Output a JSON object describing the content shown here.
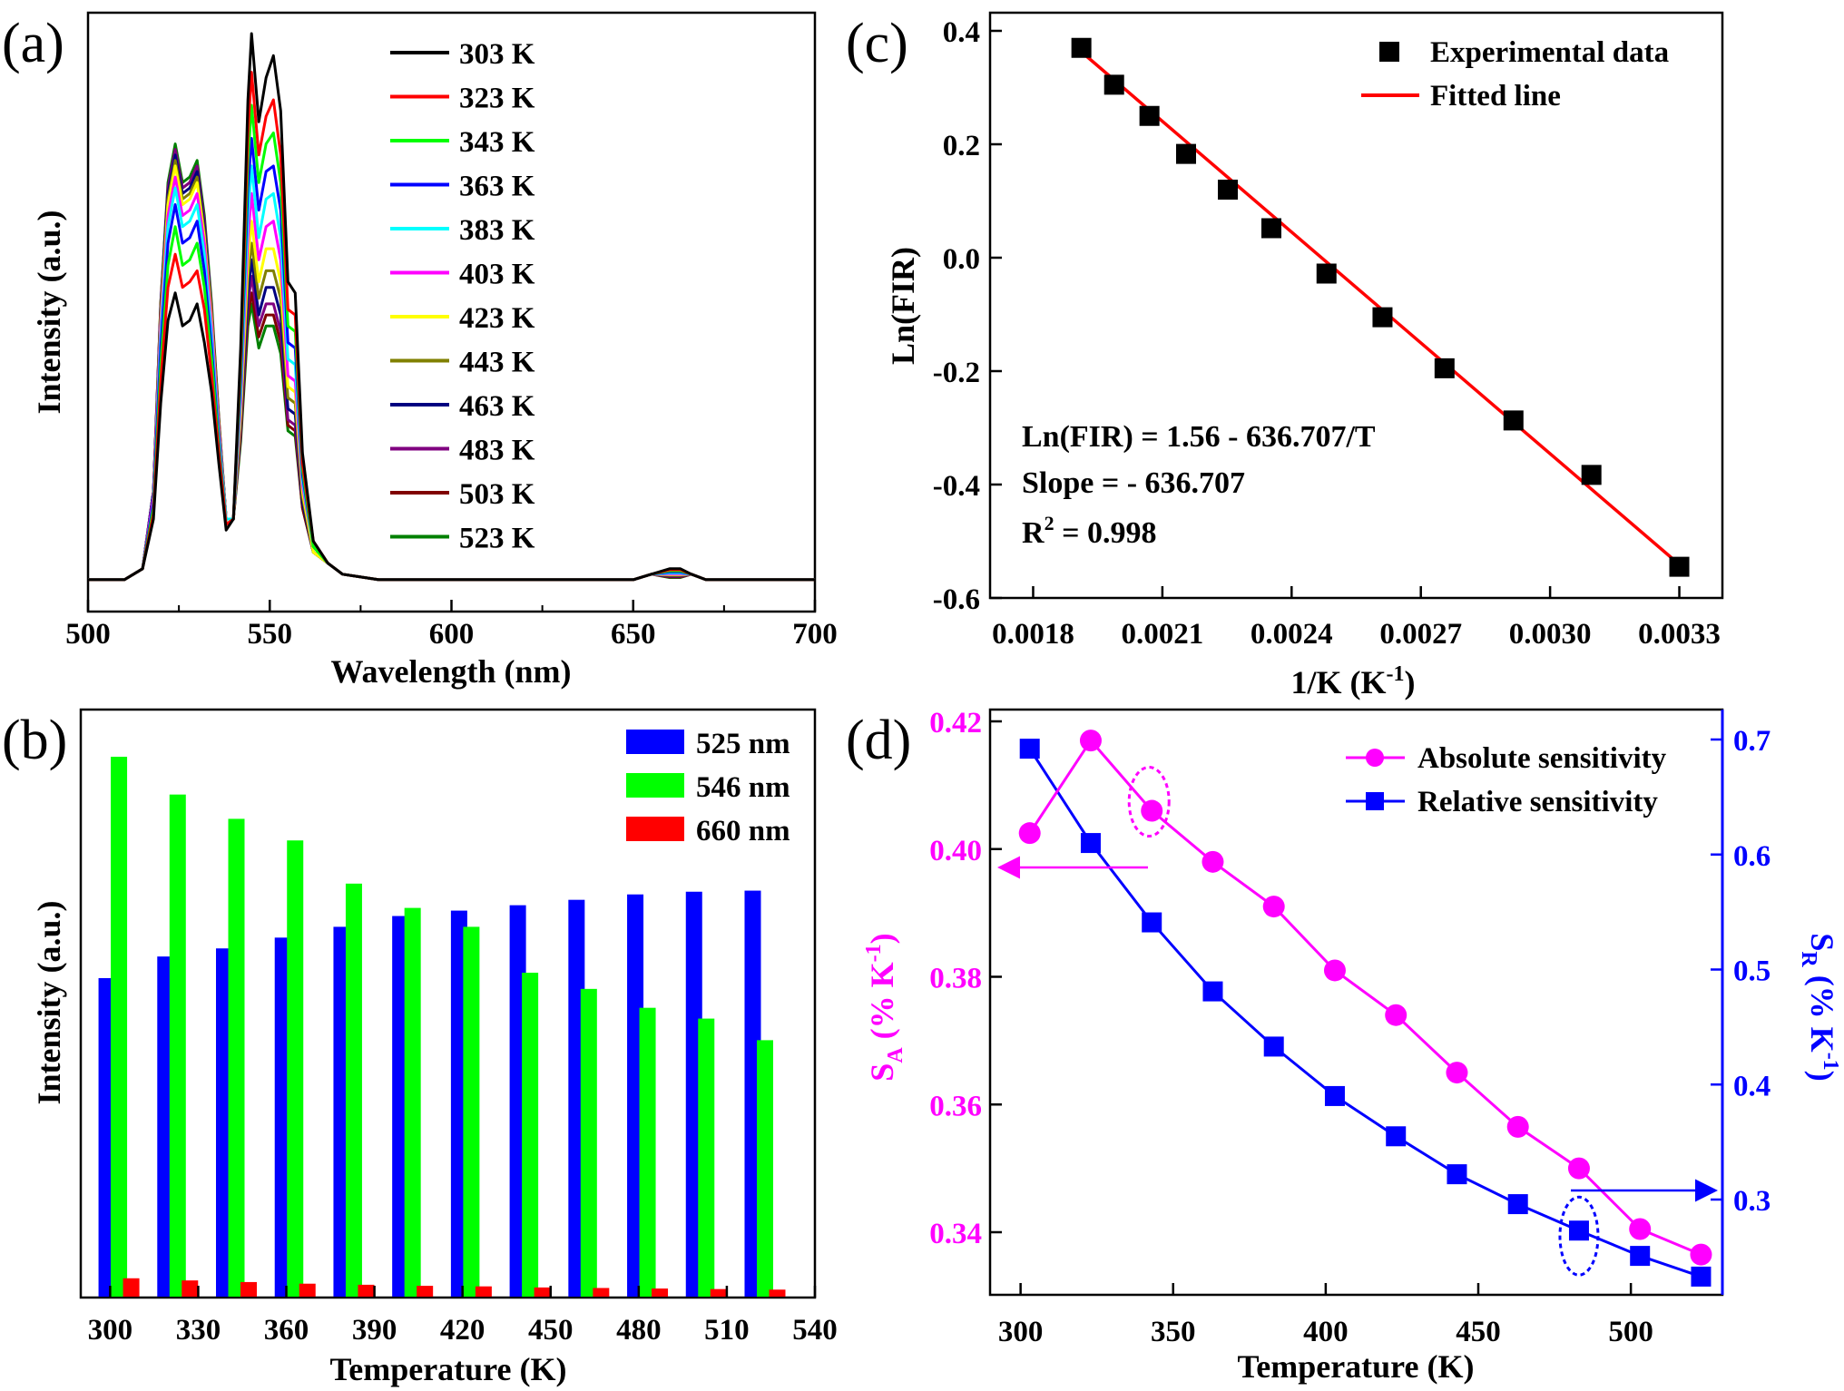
{
  "chart_data": [
    {
      "panel_label": "(a)",
      "type": "line",
      "xlabel": "Wavelength (nm)",
      "ylabel": "Intensity (a.u.)",
      "xlim": [
        500,
        700
      ],
      "xticks": [
        "500",
        "550",
        "600",
        "650",
        "700"
      ],
      "legend_position": "top-center",
      "x": [
        500,
        510,
        515,
        518,
        520,
        522,
        524,
        526,
        528,
        530,
        532,
        534,
        536,
        538,
        540,
        542,
        544,
        545,
        547,
        549,
        551,
        553,
        555,
        557,
        559,
        562,
        566,
        570,
        580,
        600,
        640,
        650,
        655,
        660,
        663,
        666,
        670,
        680,
        700
      ],
      "series": [
        {
          "name": "303 K",
          "color": "#000000",
          "values": [
            0.01,
            0.01,
            0.03,
            0.12,
            0.33,
            0.48,
            0.53,
            0.47,
            0.48,
            0.51,
            0.44,
            0.35,
            0.22,
            0.1,
            0.12,
            0.43,
            0.88,
            1.0,
            0.84,
            0.92,
            0.96,
            0.86,
            0.55,
            0.53,
            0.24,
            0.08,
            0.04,
            0.02,
            0.01,
            0.01,
            0.01,
            0.01,
            0.02,
            0.03,
            0.03,
            0.02,
            0.01,
            0.01,
            0.01
          ]
        },
        {
          "name": "323 K",
          "color": "#ff0000",
          "values": [
            0.01,
            0.01,
            0.03,
            0.13,
            0.37,
            0.54,
            0.6,
            0.54,
            0.55,
            0.57,
            0.5,
            0.38,
            0.24,
            0.11,
            0.12,
            0.41,
            0.82,
            0.93,
            0.78,
            0.85,
            0.88,
            0.78,
            0.5,
            0.49,
            0.22,
            0.08,
            0.04,
            0.02,
            0.01,
            0.01,
            0.01,
            0.01,
            0.02,
            0.028,
            0.028,
            0.02,
            0.01,
            0.01,
            0.01
          ]
        },
        {
          "name": "343 K",
          "color": "#00ff00",
          "values": [
            0.01,
            0.01,
            0.03,
            0.14,
            0.4,
            0.58,
            0.65,
            0.58,
            0.59,
            0.62,
            0.54,
            0.41,
            0.25,
            0.11,
            0.12,
            0.39,
            0.77,
            0.87,
            0.73,
            0.8,
            0.82,
            0.73,
            0.47,
            0.46,
            0.21,
            0.07,
            0.04,
            0.02,
            0.01,
            0.01,
            0.01,
            0.01,
            0.02,
            0.026,
            0.026,
            0.02,
            0.01,
            0.01,
            0.01
          ]
        },
        {
          "name": "363 K",
          "color": "#0000ff",
          "values": [
            0.01,
            0.01,
            0.03,
            0.15,
            0.43,
            0.62,
            0.69,
            0.62,
            0.63,
            0.66,
            0.57,
            0.43,
            0.26,
            0.11,
            0.12,
            0.37,
            0.72,
            0.81,
            0.68,
            0.75,
            0.76,
            0.68,
            0.44,
            0.43,
            0.2,
            0.07,
            0.04,
            0.02,
            0.01,
            0.01,
            0.01,
            0.01,
            0.02,
            0.024,
            0.024,
            0.02,
            0.01,
            0.01,
            0.01
          ]
        },
        {
          "name": "383 K",
          "color": "#00ffff",
          "values": [
            0.01,
            0.01,
            0.03,
            0.15,
            0.45,
            0.65,
            0.72,
            0.65,
            0.66,
            0.69,
            0.6,
            0.45,
            0.27,
            0.12,
            0.12,
            0.35,
            0.67,
            0.76,
            0.63,
            0.7,
            0.71,
            0.63,
            0.41,
            0.4,
            0.19,
            0.07,
            0.04,
            0.02,
            0.01,
            0.01,
            0.01,
            0.01,
            0.02,
            0.022,
            0.022,
            0.02,
            0.01,
            0.01,
            0.01
          ]
        },
        {
          "name": "403 K",
          "color": "#ff00ff",
          "values": [
            0.01,
            0.01,
            0.03,
            0.16,
            0.47,
            0.67,
            0.74,
            0.67,
            0.68,
            0.71,
            0.62,
            0.47,
            0.28,
            0.12,
            0.12,
            0.33,
            0.63,
            0.71,
            0.59,
            0.65,
            0.66,
            0.59,
            0.38,
            0.37,
            0.18,
            0.07,
            0.04,
            0.02,
            0.01,
            0.01,
            0.01,
            0.01,
            0.02,
            0.02,
            0.02,
            0.02,
            0.01,
            0.01,
            0.01
          ]
        },
        {
          "name": "423 K",
          "color": "#ffff00",
          "values": [
            0.01,
            0.01,
            0.03,
            0.16,
            0.48,
            0.69,
            0.76,
            0.69,
            0.7,
            0.73,
            0.63,
            0.48,
            0.28,
            0.12,
            0.12,
            0.31,
            0.59,
            0.66,
            0.55,
            0.61,
            0.61,
            0.55,
            0.36,
            0.35,
            0.17,
            0.06,
            0.04,
            0.02,
            0.01,
            0.01,
            0.01,
            0.01,
            0.02,
            0.019,
            0.019,
            0.02,
            0.01,
            0.01,
            0.01
          ]
        },
        {
          "name": "443 K",
          "color": "#808000",
          "values": [
            0.01,
            0.01,
            0.03,
            0.16,
            0.49,
            0.7,
            0.77,
            0.7,
            0.71,
            0.74,
            0.64,
            0.49,
            0.29,
            0.12,
            0.12,
            0.3,
            0.56,
            0.62,
            0.52,
            0.57,
            0.57,
            0.52,
            0.34,
            0.33,
            0.16,
            0.06,
            0.04,
            0.02,
            0.01,
            0.01,
            0.01,
            0.01,
            0.02,
            0.018,
            0.018,
            0.02,
            0.01,
            0.01,
            0.01
          ]
        },
        {
          "name": "463 K",
          "color": "#000080",
          "values": [
            0.01,
            0.01,
            0.03,
            0.17,
            0.5,
            0.71,
            0.78,
            0.71,
            0.72,
            0.75,
            0.65,
            0.49,
            0.29,
            0.12,
            0.12,
            0.29,
            0.53,
            0.59,
            0.49,
            0.54,
            0.54,
            0.49,
            0.32,
            0.31,
            0.15,
            0.06,
            0.04,
            0.02,
            0.01,
            0.01,
            0.01,
            0.01,
            0.02,
            0.017,
            0.017,
            0.02,
            0.01,
            0.01,
            0.01
          ]
        },
        {
          "name": "483 K",
          "color": "#800080",
          "values": [
            0.01,
            0.01,
            0.03,
            0.17,
            0.5,
            0.72,
            0.79,
            0.72,
            0.73,
            0.76,
            0.66,
            0.5,
            0.29,
            0.12,
            0.12,
            0.28,
            0.51,
            0.56,
            0.47,
            0.51,
            0.51,
            0.46,
            0.3,
            0.29,
            0.15,
            0.06,
            0.04,
            0.02,
            0.01,
            0.01,
            0.01,
            0.01,
            0.02,
            0.016,
            0.016,
            0.02,
            0.01,
            0.01,
            0.01
          ]
        },
        {
          "name": "503 K",
          "color": "#800000",
          "values": [
            0.01,
            0.01,
            0.03,
            0.17,
            0.51,
            0.72,
            0.79,
            0.72,
            0.73,
            0.76,
            0.66,
            0.5,
            0.3,
            0.12,
            0.12,
            0.27,
            0.49,
            0.53,
            0.45,
            0.49,
            0.49,
            0.44,
            0.29,
            0.28,
            0.14,
            0.06,
            0.04,
            0.02,
            0.01,
            0.01,
            0.01,
            0.01,
            0.02,
            0.015,
            0.015,
            0.02,
            0.01,
            0.01,
            0.01
          ]
        },
        {
          "name": "523 K",
          "color": "#008000",
          "values": [
            0.01,
            0.01,
            0.03,
            0.17,
            0.51,
            0.73,
            0.8,
            0.73,
            0.74,
            0.77,
            0.67,
            0.51,
            0.3,
            0.12,
            0.12,
            0.26,
            0.47,
            0.51,
            0.43,
            0.47,
            0.47,
            0.42,
            0.28,
            0.27,
            0.14,
            0.06,
            0.04,
            0.02,
            0.01,
            0.01,
            0.01,
            0.01,
            0.02,
            0.014,
            0.014,
            0.02,
            0.01,
            0.01,
            0.01
          ]
        }
      ]
    },
    {
      "panel_label": "(b)",
      "type": "bar",
      "xlabel": "Temperature (K)",
      "ylabel": "Intensity (a.u.)",
      "xlim": [
        290,
        540
      ],
      "xticks": [
        "300",
        "330",
        "360",
        "390",
        "420",
        "450",
        "480",
        "510",
        "540"
      ],
      "legend_position": "top-right",
      "categories": [
        303,
        323,
        343,
        363,
        383,
        403,
        423,
        443,
        463,
        483,
        503,
        523
      ],
      "series": [
        {
          "name": "525 nm",
          "color": "#0000ff",
          "values": [
            0.59,
            0.63,
            0.645,
            0.665,
            0.685,
            0.705,
            0.715,
            0.725,
            0.735,
            0.745,
            0.75,
            0.752
          ]
        },
        {
          "name": "546 nm",
          "color": "#00ff00",
          "values": [
            1.0,
            0.93,
            0.885,
            0.845,
            0.765,
            0.72,
            0.685,
            0.6,
            0.57,
            0.535,
            0.515,
            0.475
          ]
        },
        {
          "name": "660 nm",
          "color": "#ff0000",
          "values": [
            0.034,
            0.03,
            0.027,
            0.024,
            0.022,
            0.02,
            0.019,
            0.017,
            0.016,
            0.015,
            0.014,
            0.013
          ]
        }
      ]
    },
    {
      "panel_label": "(c)",
      "type": "scatter",
      "xlabel": "1/K (K⁻¹)",
      "ylabel": "Ln(FIR)",
      "xlim": [
        0.0017,
        0.0034
      ],
      "ylim": [
        -0.6,
        0.4
      ],
      "xticks": [
        "0.0018",
        "0.0021",
        "0.0024",
        "0.0027",
        "0.0030",
        "0.0033"
      ],
      "yticks": [
        "-0.6",
        "-0.4",
        "-0.2",
        "0.0",
        "0.2",
        "0.4"
      ],
      "legend_position": "top-right",
      "series": [
        {
          "name": "Experimental data",
          "color": "#000000",
          "x": [
            0.001912,
            0.001988,
            0.00207,
            0.002155,
            0.002252,
            0.002353,
            0.002481,
            0.002611,
            0.002755,
            0.002915,
            0.003096,
            0.0033
          ],
          "y": [
            0.37,
            0.305,
            0.25,
            0.183,
            0.12,
            0.052,
            -0.028,
            -0.105,
            -0.195,
            -0.287,
            -0.383,
            -0.545
          ]
        },
        {
          "name": "Fitted line",
          "color": "#ff0000",
          "x": [
            0.001912,
            0.0033
          ],
          "y": [
            0.363,
            -0.541
          ]
        }
      ],
      "annotations": [
        "Ln(FIR) = 1.56 - 636.707/T",
        "Slope = - 636.707",
        "0.998"
      ],
      "r_squared_label": "R"
    },
    {
      "panel_label": "(d)",
      "type": "line",
      "xlabel": "Temperature (K)",
      "ylabel_left": "(% K",
      "ylabel_left_symbol": "S",
      "ylabel_left_sub": "A",
      "ylabel_right": "(% K",
      "ylabel_right_symbol": "S",
      "ylabel_right_sub": "R",
      "xlim": [
        290,
        530
      ],
      "ylim_left": [
        0.33,
        0.42
      ],
      "ylim_right": [
        0.22,
        0.72
      ],
      "xticks": [
        "300",
        "350",
        "400",
        "450",
        "500"
      ],
      "yticks_left": [
        "0.34",
        "0.36",
        "0.38",
        "0.40",
        "0.42"
      ],
      "yticks_right": [
        "0.3",
        "0.4",
        "0.5",
        "0.6",
        "0.7"
      ],
      "legend_position": "top-right",
      "colors": {
        "absolute": "#ff00ff",
        "relative": "#0000ff"
      },
      "x": [
        303,
        323,
        343,
        363,
        383,
        403,
        423,
        443,
        463,
        483,
        503,
        523
      ],
      "series": [
        {
          "name": "Absolute sensitivity",
          "axis": "left",
          "color": "#ff00ff",
          "values": [
            0.4025,
            0.417,
            0.406,
            0.398,
            0.391,
            0.381,
            0.374,
            0.365,
            0.3565,
            0.35,
            0.3405,
            0.3365
          ]
        },
        {
          "name": "Relative sensitivity",
          "axis": "right",
          "color": "#0000ff",
          "values": [
            0.692,
            0.61,
            0.541,
            0.481,
            0.433,
            0.39,
            0.355,
            0.322,
            0.296,
            0.273,
            0.251,
            0.233
          ]
        }
      ]
    }
  ]
}
